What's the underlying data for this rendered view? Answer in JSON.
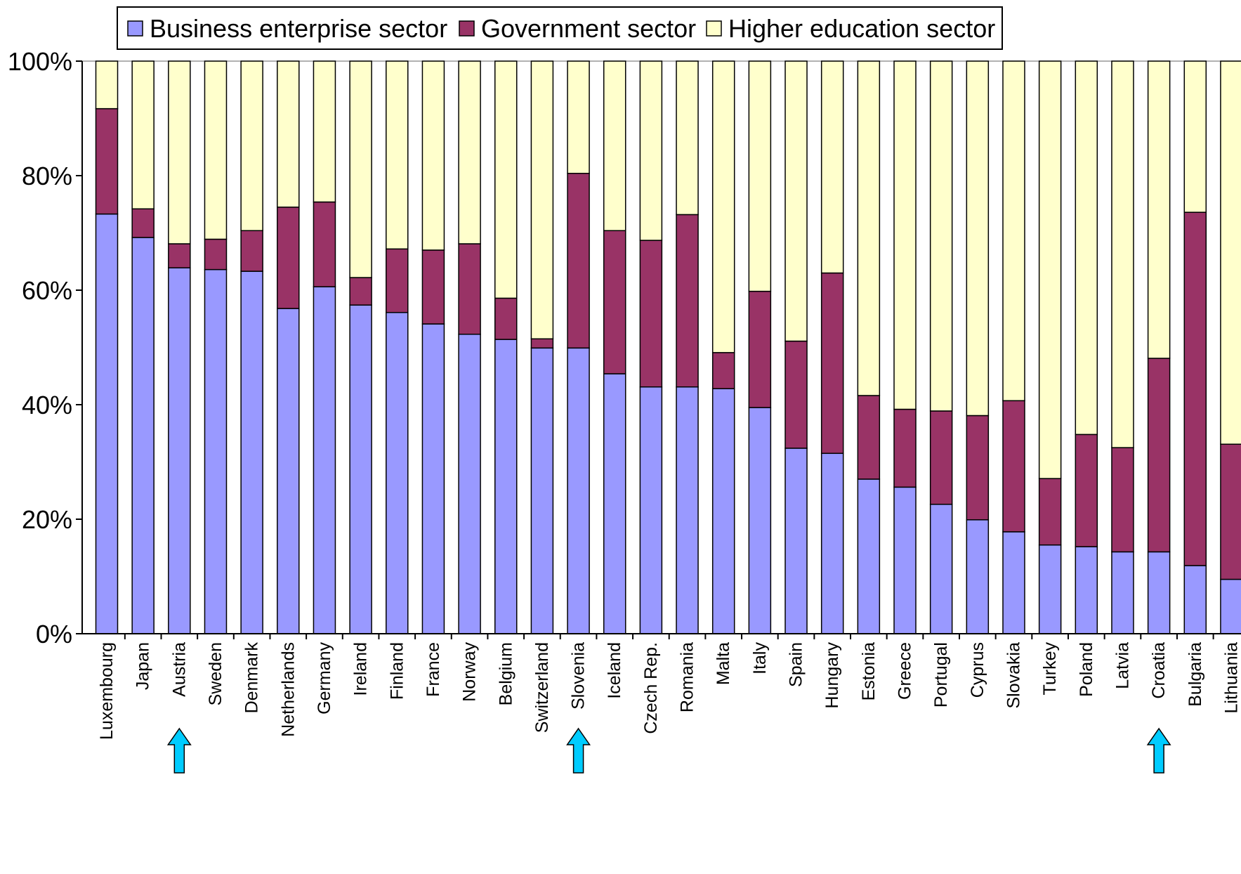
{
  "chart_data": {
    "type": "bar",
    "stacked": true,
    "percent": true,
    "categories": [
      "Luxembourg",
      "Japan",
      "Austria",
      "Sweden",
      "Denmark",
      "Netherlands",
      "Germany",
      "Ireland",
      "Finland",
      "France",
      "Norway",
      "Belgium",
      "Switzerland",
      "Slovenia",
      "Iceland",
      "Czech Rep.",
      "Romania",
      "Malta",
      "Italy",
      "Spain",
      "Hungary",
      "Estonia",
      "Greece",
      "Portugal",
      "Cyprus",
      "Slovakia",
      "Turkey",
      "Poland",
      "Latvia",
      "Croatia",
      "Bulgaria",
      "Lithuania"
    ],
    "series": [
      {
        "name": "Business enterprise sector",
        "color": "#9999ff",
        "values": [
          73.3,
          69.2,
          63.9,
          63.6,
          63.3,
          56.8,
          60.6,
          57.4,
          56.1,
          54.1,
          52.3,
          51.4,
          49.9,
          49.9,
          45.4,
          43.1,
          43.1,
          42.8,
          39.5,
          32.4,
          31.5,
          27.0,
          25.6,
          22.6,
          19.9,
          17.8,
          15.5,
          15.2,
          14.3,
          14.3,
          11.9,
          9.5
        ]
      },
      {
        "name": "Government sector",
        "color": "#993366",
        "values": [
          18.4,
          5.0,
          4.2,
          5.3,
          7.1,
          17.7,
          14.8,
          4.8,
          11.1,
          12.9,
          15.8,
          7.2,
          1.6,
          30.5,
          25.0,
          25.6,
          30.1,
          6.3,
          20.3,
          18.7,
          31.5,
          14.6,
          13.6,
          16.3,
          18.2,
          22.9,
          11.6,
          19.6,
          18.2,
          33.8,
          61.7,
          23.6
        ]
      },
      {
        "name": "Higher education sector",
        "color": "#ffffcc",
        "values": [
          8.3,
          25.8,
          31.9,
          31.1,
          29.6,
          25.5,
          24.6,
          37.8,
          32.8,
          33.0,
          31.9,
          41.4,
          48.5,
          19.6,
          29.6,
          31.3,
          26.8,
          50.9,
          40.2,
          48.9,
          37.0,
          58.4,
          60.8,
          61.1,
          61.9,
          59.3,
          72.9,
          65.2,
          67.5,
          51.9,
          26.4,
          66.9
        ]
      }
    ],
    "yticks": [
      "0%",
      "20%",
      "40%",
      "60%",
      "80%",
      "100%"
    ],
    "ylim": [
      0,
      100
    ],
    "legend_position": "top",
    "highlighted": [
      "Austria",
      "Slovenia",
      "Croatia"
    ],
    "highlight_color": "#00ccff",
    "grid": false
  }
}
